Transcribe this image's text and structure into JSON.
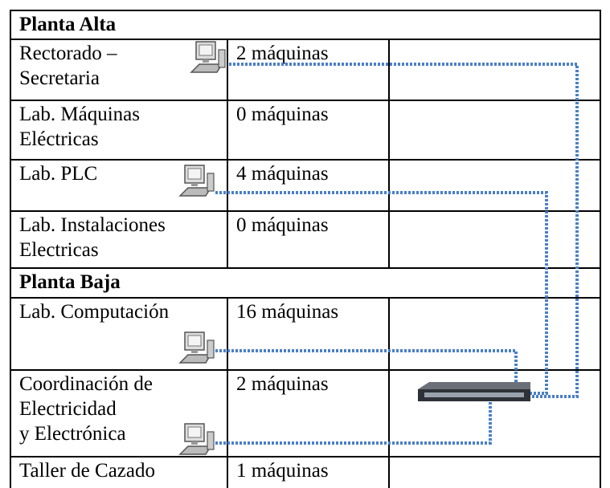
{
  "sections": [
    {
      "title": "Planta Alta",
      "rows": [
        {
          "room": [
            "Rectorado –",
            "Secretaria"
          ],
          "machines": "2 máquinas"
        },
        {
          "room": [
            "Lab. Máquinas",
            "Eléctricas"
          ],
          "machines": "0 máquinas"
        },
        {
          "room": [
            "Lab. PLC"
          ],
          "machines": "4 máquinas"
        },
        {
          "room": [
            "Lab. Instalaciones",
            "Electricas"
          ],
          "machines": "0 máquinas"
        }
      ]
    },
    {
      "title": "Planta Baja",
      "rows": [
        {
          "room": [
            "Lab. Computación"
          ],
          "machines": "16 máquinas"
        },
        {
          "room": [
            "Coordinación de",
            "Electricidad",
            "y Electrónica"
          ],
          "machines": "2 máquinas"
        },
        {
          "room": [
            "Taller de Cazado"
          ],
          "machines": "1 máquinas"
        }
      ]
    }
  ]
}
